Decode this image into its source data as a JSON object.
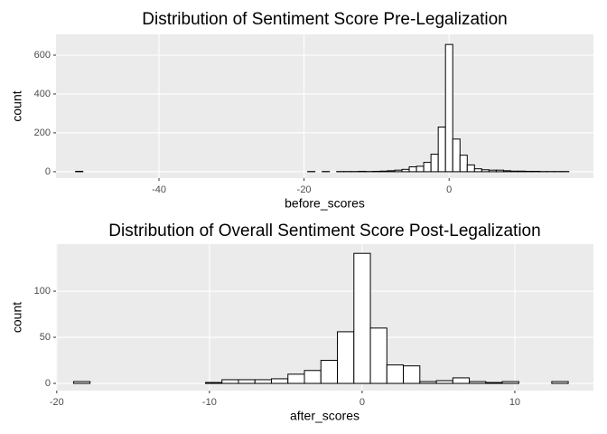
{
  "chart_data": [
    {
      "type": "histogram",
      "title": "Distribution of Sentiment Score Pre-Legalization",
      "x_label": "before_scores",
      "y_label": "count",
      "bins": [
        -51.5,
        -50.5,
        -49.5,
        -48.5,
        -47.5,
        -46.5,
        -45.5,
        -44.5,
        -43.5,
        -42.5,
        -41.5,
        -40.5,
        -39.5,
        -38.5,
        -37.5,
        -36.5,
        -35.5,
        -34.5,
        -33.5,
        -32.5,
        -31.5,
        -30.5,
        -29.5,
        -28.5,
        -27.5,
        -26.5,
        -25.5,
        -24.5,
        -23.5,
        -22.5,
        -21.5,
        -20.5,
        -19.5,
        -18.5,
        -17.5,
        -16.5,
        -15.5,
        -14.5,
        -13.5,
        -12.5,
        -11.5,
        -10.5,
        -9.5,
        -8.5,
        -7.5,
        -6.5,
        -5.5,
        -4.5,
        -3.5,
        -2.5,
        -1.5,
        -0.5,
        0.5,
        1.5,
        2.5,
        3.5,
        4.5,
        5.5,
        6.5,
        7.5,
        8.5,
        9.5,
        10.5,
        11.5,
        12.5,
        13.5,
        14.5,
        15.5,
        16.5
      ],
      "values": [
        2,
        0,
        0,
        0,
        0,
        0,
        0,
        0,
        0,
        0,
        0,
        0,
        0,
        0,
        0,
        0,
        0,
        0,
        0,
        0,
        0,
        0,
        0,
        0,
        0,
        0,
        0,
        0,
        0,
        0,
        0,
        0,
        1,
        0,
        1,
        0,
        1,
        1,
        1,
        2,
        1,
        2,
        3,
        5,
        8,
        12,
        25,
        28,
        48,
        90,
        230,
        655,
        168,
        85,
        35,
        15,
        10,
        8,
        8,
        5,
        3,
        3,
        2,
        2,
        1,
        1,
        1,
        1
      ],
      "xlim": [
        -54.2,
        19.9
      ],
      "ylim": [
        -33,
        707
      ],
      "xticks": [
        -40,
        -20,
        0
      ],
      "yticks": [
        0,
        200,
        400,
        600
      ],
      "grid": true,
      "color": "#ffffff"
    },
    {
      "type": "histogram",
      "title": "Distribution of Overall Sentiment Score Post-Legalization",
      "x_label": "after_scores",
      "y_label": "count",
      "bins": [
        -18.9,
        -17.82,
        -16.74,
        -15.66,
        -14.58,
        -13.5,
        -12.42,
        -11.34,
        -10.26,
        -9.18,
        -8.1,
        -7.02,
        -5.94,
        -4.86,
        -3.78,
        -2.7,
        -1.62,
        -0.54,
        0.54,
        1.62,
        2.7,
        3.78,
        4.86,
        5.94,
        7.02,
        8.1,
        9.18,
        10.26,
        11.34,
        12.42,
        13.5
      ],
      "values": [
        2,
        0,
        0,
        0,
        0,
        0,
        0,
        0,
        1,
        4,
        4,
        4,
        5,
        10,
        14,
        25,
        56,
        141,
        60,
        20,
        19,
        2,
        3,
        6,
        2,
        1,
        2,
        0,
        0,
        2
      ],
      "xlim": [
        -20.05,
        15.15
      ],
      "ylim": [
        -7.8,
        151
      ],
      "xticks": [
        -20,
        -10,
        0,
        10
      ],
      "yticks": [
        0,
        50,
        100
      ],
      "grid": true,
      "color": "#ffffff"
    }
  ]
}
